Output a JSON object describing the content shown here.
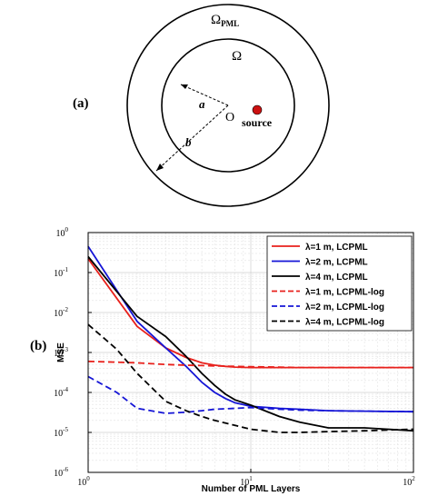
{
  "diagram": {
    "panel_label": "(a)",
    "outer_region_label": "Ω",
    "outer_region_sub": "PML",
    "inner_region_label": "Ω",
    "origin_label": "O",
    "source_label": "source",
    "radius_a_label": "a",
    "radius_b_label": "b"
  },
  "chart_panel_label": "(b)",
  "chart_data": {
    "type": "line",
    "xlabel": "Number of PML Layers",
    "ylabel": "MSE",
    "xscale": "log",
    "yscale": "log",
    "xlim": [
      1,
      100
    ],
    "ylim": [
      1e-06,
      1
    ],
    "grid": true,
    "legend_position": "top-right",
    "x_ticks": [
      {
        "value": 1,
        "base": "10",
        "exp": "0"
      },
      {
        "value": 10,
        "base": "10",
        "exp": "1"
      },
      {
        "value": 100,
        "base": "10",
        "exp": "2"
      }
    ],
    "y_ticks": [
      {
        "value": 1e-06,
        "base": "10",
        "exp": "-6"
      },
      {
        "value": 1e-05,
        "base": "10",
        "exp": "-5"
      },
      {
        "value": 0.0001,
        "base": "10",
        "exp": "-4"
      },
      {
        "value": 0.001,
        "base": "10",
        "exp": "-3"
      },
      {
        "value": 0.01,
        "base": "10",
        "exp": "-2"
      },
      {
        "value": 0.1,
        "base": "10",
        "exp": "-1"
      },
      {
        "value": 1,
        "base": "10",
        "exp": "0"
      }
    ],
    "series": [
      {
        "name": "λ=1 m, LCPML",
        "color": "#e8211c",
        "dash": "solid",
        "x": [
          1,
          2,
          3,
          4,
          5,
          6,
          7,
          8,
          10,
          15,
          20,
          30,
          50,
          100
        ],
        "y": [
          0.22,
          0.0045,
          0.0013,
          0.00075,
          0.00055,
          0.00048,
          0.00045,
          0.00043,
          0.00042,
          0.00042,
          0.00042,
          0.00042,
          0.00042,
          0.00042
        ]
      },
      {
        "name": "λ=2 m, LCPML",
        "color": "#1515d6",
        "dash": "solid",
        "x": [
          1,
          2,
          3,
          4,
          5,
          6,
          7,
          8,
          10,
          15,
          20,
          30,
          50,
          100
        ],
        "y": [
          0.45,
          0.006,
          0.0013,
          0.00045,
          0.00018,
          0.0001,
          7e-05,
          5.5e-05,
          4.5e-05,
          4e-05,
          3.8e-05,
          3.5e-05,
          3.4e-05,
          3.3e-05
        ]
      },
      {
        "name": "λ=4 m, LCPML",
        "color": "#000000",
        "dash": "solid",
        "x": [
          1,
          2,
          3,
          4,
          5,
          6,
          7,
          8,
          10,
          15,
          20,
          30,
          50,
          100
        ],
        "y": [
          0.25,
          0.008,
          0.0025,
          0.0008,
          0.0003,
          0.00015,
          9e-05,
          6.5e-05,
          4.8e-05,
          2.5e-05,
          1.8e-05,
          1.3e-05,
          1.3e-05,
          1.1e-05
        ]
      },
      {
        "name": "λ=1 m, LCPML-log",
        "color": "#e8211c",
        "dash": "dashed",
        "x": [
          1,
          2,
          3,
          4,
          5,
          6,
          8,
          10,
          15,
          20,
          30,
          50,
          100
        ],
        "y": [
          0.0006,
          0.00055,
          0.0005,
          0.00048,
          0.00047,
          0.00046,
          0.00045,
          0.00044,
          0.00043,
          0.00042,
          0.00042,
          0.00042,
          0.00042
        ]
      },
      {
        "name": "λ=2 m, LCPML-log",
        "color": "#1515d6",
        "dash": "dashed",
        "x": [
          1,
          1.5,
          2,
          3,
          4,
          5,
          6,
          8,
          10,
          15,
          20,
          30,
          50,
          100
        ],
        "y": [
          0.00025,
          0.0001,
          4e-05,
          3e-05,
          3.2e-05,
          3.5e-05,
          3.8e-05,
          4e-05,
          4.2e-05,
          3.8e-05,
          3.6e-05,
          3.5e-05,
          3.4e-05,
          3.3e-05
        ]
      },
      {
        "name": "λ=4 m, LCPML-log",
        "color": "#000000",
        "dash": "dashed",
        "x": [
          1,
          1.5,
          2,
          3,
          4,
          5,
          6,
          8,
          10,
          15,
          20,
          30,
          50,
          100
        ],
        "y": [
          0.005,
          0.0012,
          0.0003,
          6e-05,
          3.5e-05,
          2.5e-05,
          2e-05,
          1.5e-05,
          1.2e-05,
          1e-05,
          1e-05,
          1.05e-05,
          1.1e-05,
          1.2e-05
        ]
      }
    ]
  }
}
